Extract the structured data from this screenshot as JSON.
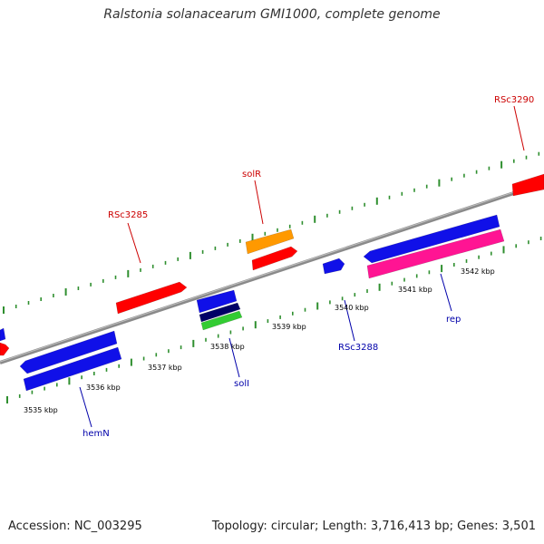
{
  "title": "Ralstonia solanacearum GMI1000, complete genome",
  "footer": {
    "accession": "Accession: NC_003295",
    "summary": "Topology: circular; Length: 3,716,413 bp; Genes: 3,501"
  },
  "colors": {
    "axis": "#8a8a8a",
    "tick": "#2f8f2f",
    "label_red": "#cc0000",
    "label_blue": "#0000aa",
    "gene_red": "#ff0000",
    "gene_blue": "#1010e8",
    "gene_orange": "#ff9900",
    "gene_pink": "#ff1493",
    "gene_navy": "#000066",
    "gene_green": "#33cc33"
  },
  "scale_labels": [
    "3535 kbp",
    "3536 kbp",
    "3537 kbp",
    "3538 kbp",
    "3539 kbp",
    "3540 kbp",
    "3541 kbp",
    "3542 kbp"
  ],
  "genes": [
    {
      "color": "gene_red"
    },
    {
      "color": "gene_red"
    },
    {
      "color": "gene_orange"
    },
    {
      "color": "gene_red"
    },
    {
      "color": "gene_red"
    },
    {
      "color": "gene_blue"
    },
    {
      "color": "gene_blue"
    },
    {
      "color": "gene_blue"
    },
    {
      "color": "gene_navy"
    },
    {
      "color": "gene_green"
    },
    {
      "color": "gene_blue"
    },
    {
      "color": "gene_blue"
    },
    {
      "color": "gene_pink"
    },
    {
      "color": "gene_blue"
    }
  ],
  "gene_labels": [
    {
      "text": "RSc3285",
      "color": "label_red"
    },
    {
      "text": "solR",
      "color": "label_red"
    },
    {
      "text": "RSc3290",
      "color": "label_red"
    },
    {
      "text": "hemN",
      "color": "label_blue"
    },
    {
      "text": "solI",
      "color": "label_blue"
    },
    {
      "text": "RSc3288",
      "color": "label_blue"
    },
    {
      "text": "rep",
      "color": "label_blue"
    }
  ]
}
